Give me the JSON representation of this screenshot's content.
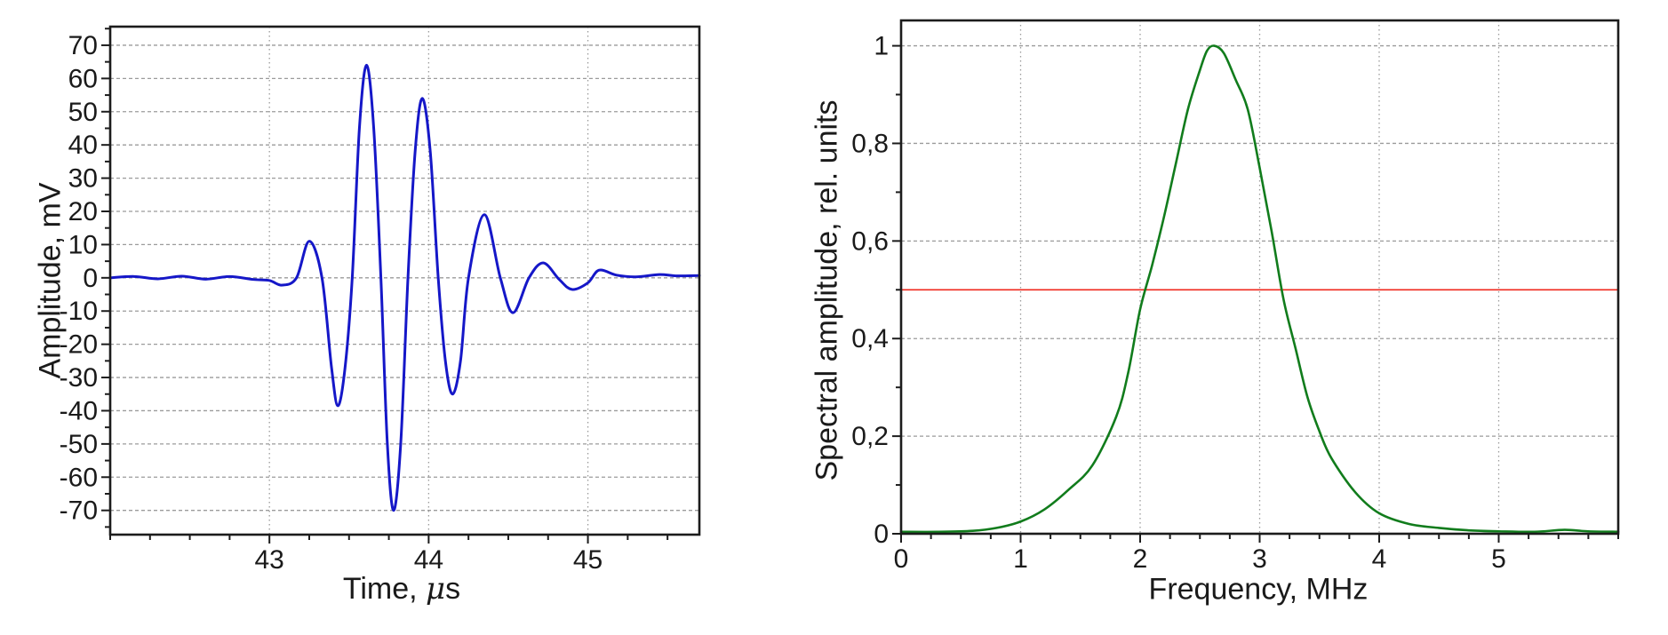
{
  "figure": {
    "background": "#ffffff",
    "border_color": "#1c1c1c",
    "grid_color": "#9b9b9b",
    "text_color": "#1a1a1a"
  },
  "chart_data": [
    {
      "type": "line",
      "name": "echo-waveform",
      "title": "",
      "xlabel": "Time, μs",
      "xlabel_parts": {
        "prefix": "Time, ",
        "mu": "μ",
        "suffix": "s"
      },
      "ylabel": "Amplitude, mV",
      "xlim": [
        42.0,
        45.7
      ],
      "ylim": [
        -77.3,
        75.6
      ],
      "x_ticks": [
        43,
        44,
        45
      ],
      "x_tick_labels": [
        "43",
        "44",
        "45"
      ],
      "x_minor_step": 0.25,
      "y_ticks": [
        -70,
        -60,
        -50,
        -40,
        -30,
        -20,
        -10,
        0,
        10,
        20,
        30,
        40,
        50,
        60,
        70
      ],
      "y_tick_labels": [
        "-70",
        "-60",
        "-50",
        "-40",
        "-30",
        "-20",
        "-10",
        "0",
        "10",
        "20",
        "30",
        "40",
        "50",
        "60",
        "70"
      ],
      "y_minor_step": 5,
      "grid": true,
      "legend": "none",
      "series": [
        {
          "name": "ultrasonic-echo-signal",
          "color": "#1517c8",
          "width": 3,
          "x": [
            42.0,
            42.15,
            42.3,
            42.45,
            42.6,
            42.75,
            42.9,
            43.0,
            43.08,
            43.17,
            43.25,
            43.33,
            43.39,
            43.43,
            43.475,
            43.52,
            43.565,
            43.61,
            43.655,
            43.7,
            43.74,
            43.78,
            43.825,
            43.87,
            43.915,
            43.96,
            44.01,
            44.06,
            44.105,
            44.15,
            44.2,
            44.25,
            44.35,
            44.45,
            44.53,
            44.63,
            44.72,
            44.82,
            44.9,
            45.0,
            45.07,
            45.18,
            45.3,
            45.45,
            45.55,
            45.7
          ],
          "y": [
            0,
            0.4,
            -0.3,
            0.5,
            -0.4,
            0.4,
            -0.5,
            -0.8,
            -2.2,
            0,
            11,
            0,
            -27,
            -38.5,
            -27,
            0,
            45,
            64,
            45,
            0,
            -49.5,
            -70,
            -49.5,
            0,
            38,
            54,
            38,
            0,
            -25,
            -35,
            -25,
            0,
            19,
            0,
            -10.5,
            0,
            4.5,
            -0.5,
            -3.5,
            -1.5,
            2.3,
            0.8,
            0.3,
            1.0,
            0.6,
            0.7
          ]
        }
      ],
      "ref_lines": []
    },
    {
      "type": "line",
      "name": "spectrum",
      "title": "",
      "xlabel": "Frequency, MHz",
      "ylabel": "Spectral amplitude, rel. units",
      "xlim": [
        0,
        6.0
      ],
      "ylim": [
        0,
        1.052
      ],
      "x_ticks": [
        0,
        1,
        2,
        3,
        4,
        5
      ],
      "x_tick_labels": [
        "0",
        "1",
        "2",
        "3",
        "4",
        "5"
      ],
      "x_minor_step": 0.25,
      "y_ticks": [
        0,
        0.2,
        0.4,
        0.6,
        0.8,
        1
      ],
      "y_tick_labels": [
        "0",
        "0,2",
        "0,4",
        "0,6",
        "0,8",
        "1"
      ],
      "y_minor_step": 0.1,
      "grid": true,
      "legend": "none",
      "peak": {
        "frequency_mhz": 2.62,
        "amplitude": 1.0
      },
      "series": [
        {
          "name": "spectral-amplitude-curve",
          "color": "#117c1c",
          "width": 2.6,
          "x": [
            0,
            0.3,
            0.6,
            0.8,
            1.0,
            1.2,
            1.4,
            1.6,
            1.8,
            1.9,
            2.0,
            2.1,
            2.2,
            2.3,
            2.4,
            2.5,
            2.56,
            2.62,
            2.7,
            2.8,
            2.9,
            3.0,
            3.1,
            3.2,
            3.3,
            3.4,
            3.5,
            3.6,
            3.8,
            4.0,
            4.25,
            4.5,
            4.75,
            5.0,
            5.3,
            5.55,
            5.75,
            6.0
          ],
          "y": [
            0.004,
            0.004,
            0.006,
            0.012,
            0.025,
            0.05,
            0.09,
            0.14,
            0.24,
            0.33,
            0.46,
            0.55,
            0.65,
            0.76,
            0.87,
            0.95,
            0.99,
            1.0,
            0.985,
            0.93,
            0.87,
            0.75,
            0.62,
            0.48,
            0.38,
            0.28,
            0.21,
            0.155,
            0.085,
            0.042,
            0.02,
            0.012,
            0.007,
            0.005,
            0.004,
            0.008,
            0.005,
            0.004
          ]
        }
      ],
      "ref_lines": [
        {
          "name": "half-amplitude-level-line",
          "y": 0.5,
          "color": "#f0281e",
          "width": 1.6
        }
      ]
    }
  ]
}
